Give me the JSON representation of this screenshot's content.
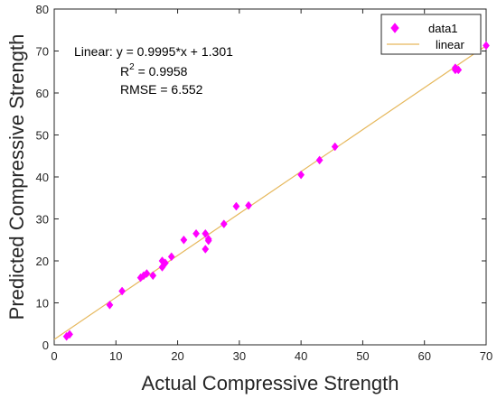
{
  "chart_data": {
    "type": "scatter",
    "xlabel": "Actual Compressive Strength",
    "ylabel": "Predicted Compressive Strength",
    "xlim": [
      0,
      70
    ],
    "ylim": [
      0,
      80
    ],
    "xticks": [
      0,
      10,
      20,
      30,
      40,
      50,
      60,
      70
    ],
    "yticks": [
      0,
      10,
      20,
      30,
      40,
      50,
      60,
      70,
      80
    ],
    "grid": false,
    "legend_position": "top-right",
    "series": [
      {
        "name": "data1",
        "kind": "scatter",
        "marker": "diamond",
        "color": "#ff00ff",
        "points": [
          [
            2.0,
            2.0
          ],
          [
            2.5,
            2.5
          ],
          [
            9.0,
            9.5
          ],
          [
            11.0,
            12.8
          ],
          [
            14.0,
            16.0
          ],
          [
            14.5,
            16.5
          ],
          [
            15.0,
            17.0
          ],
          [
            16.0,
            16.5
          ],
          [
            17.5,
            18.5
          ],
          [
            17.5,
            20.0
          ],
          [
            18.0,
            19.5
          ],
          [
            19.0,
            21.0
          ],
          [
            21.0,
            25.0
          ],
          [
            23.0,
            26.5
          ],
          [
            24.5,
            22.8
          ],
          [
            24.5,
            26.5
          ],
          [
            25.0,
            25.2
          ],
          [
            25.0,
            24.8
          ],
          [
            27.5,
            28.8
          ],
          [
            29.5,
            33.0
          ],
          [
            31.5,
            33.2
          ],
          [
            40.0,
            40.5
          ],
          [
            43.0,
            44.0
          ],
          [
            45.5,
            47.2
          ],
          [
            65.0,
            66.0
          ],
          [
            65.0,
            65.5
          ],
          [
            65.5,
            65.5
          ],
          [
            70.0,
            71.3
          ]
        ]
      },
      {
        "name": "linear",
        "kind": "line",
        "color": "#e6b85c",
        "slope": 0.9995,
        "intercept": 1.301,
        "x_range": [
          0,
          70
        ]
      }
    ],
    "annotations": {
      "equation": "Linear:  y = 0.9995*x + 1.301",
      "r2_prefix": "R",
      "r2_sup": "2",
      "r2_suffix": " = 0.9958",
      "rmse": "RMSE = 6.552"
    }
  }
}
